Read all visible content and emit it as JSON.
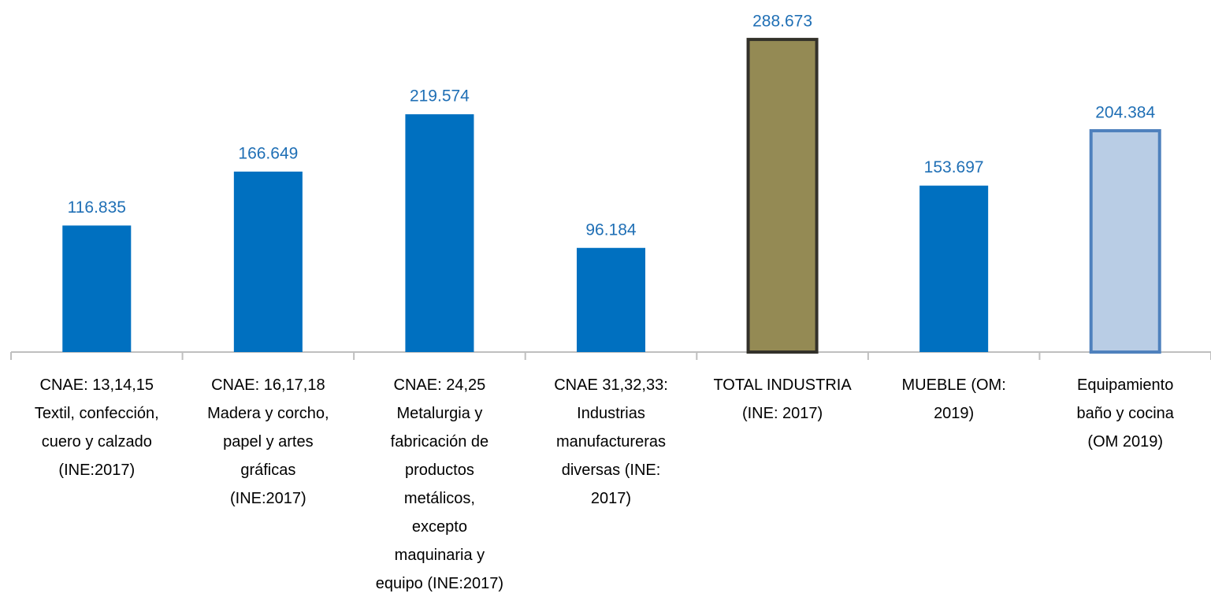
{
  "chart_data": {
    "type": "bar",
    "categories": [
      "CNAE: 13,14,15\nTextil, confección,\ncuero y calzado\n(INE:2017)",
      "CNAE: 16,17,18\nMadera y corcho,\npapel y artes\ngráficas\n(INE:2017)",
      "CNAE: 24,25\nMetalurgia y\nfabricación de\nproductos\nmetálicos,\nexcepto\nmaquinaria y\nequipo (INE:2017)",
      "CNAE 31,32,33:\nIndustrias\nmanufactureras\ndiversas (INE:\n2017)",
      "TOTAL INDUSTRIA\n(INE: 2017)",
      "MUEBLE (OM:\n2019)",
      "Equipamiento\nbaño y cocina\n(OM 2019)"
    ],
    "values": [
      116835,
      166649,
      219574,
      96184,
      288673,
      153697,
      204384
    ],
    "value_labels": [
      "116.835",
      "166.649",
      "219.574",
      "96.184",
      "288.673",
      "153.697",
      "204.384"
    ],
    "colors": [
      "#0070c0",
      "#0070c0",
      "#0070c0",
      "#0070c0",
      "#948a54",
      "#0070c0",
      "#b9cde5"
    ],
    "edgecolors": [
      null,
      null,
      null,
      null,
      "#33312a",
      null,
      "#4f81bd"
    ],
    "ylim": [
      0,
      300000
    ]
  }
}
